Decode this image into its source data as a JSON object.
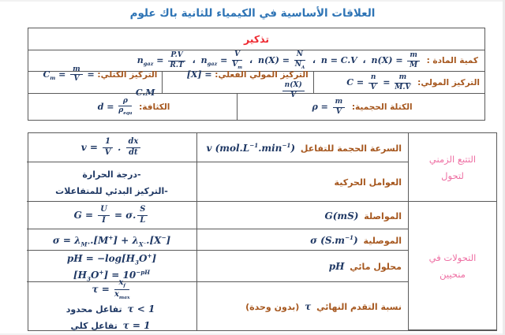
{
  "page": {
    "title": "العلاقات الأساسية في الكيمياء للثانية باك علوم"
  },
  "colors": {
    "blue": "#2E74B5",
    "red": "#EE2B33",
    "brown": "#A6571E",
    "navy": "#1F3864",
    "pink": "#EE6FA3",
    "border": "#5a5a5a"
  },
  "reminder_table": {
    "header": "تذكير",
    "amount_row": {
      "lines": [
        [
          {
            "label": "كمية المادة : "
          },
          {
            "math": [
              {
                "t": "n(X) = "
              },
              {
                "frac": {
                  "n": [
                    {
                      "t": "m"
                    }
                  ],
                  "d": [
                    {
                      "t": "M"
                    }
                  ]
                }
              }
            ]
          },
          {
            "blue": " ، "
          },
          {
            "math": [
              {
                "t": "n = C.V"
              }
            ]
          },
          {
            "blue": " ، "
          },
          {
            "math": [
              {
                "t": "n(X) = "
              },
              {
                "frac": {
                  "n": [
                    {
                      "t": "N"
                    }
                  ],
                  "d": [
                    {
                      "t": "N"
                    },
                    {
                      "sub": "A"
                    }
                  ]
                }
              }
            ]
          },
          {
            "blue": " ، "
          },
          {
            "math": [
              {
                "t": "n"
              },
              {
                "sub": "gaz"
              },
              {
                "t": " = "
              },
              {
                "frac": {
                  "n": [
                    {
                      "t": "V"
                    }
                  ],
                  "d": [
                    {
                      "t": "V"
                    },
                    {
                      "sub": "m"
                    }
                  ]
                }
              }
            ]
          },
          {
            "blue": " ، "
          },
          {
            "math": [
              {
                "t": "n"
              },
              {
                "sub": "gaz"
              },
              {
                "t": " = "
              },
              {
                "frac": {
                  "n": [
                    {
                      "t": "P.V"
                    }
                  ],
                  "d": [
                    {
                      "t": "R.T"
                    }
                  ]
                }
              }
            ]
          }
        ]
      ]
    },
    "concentration_row": {
      "molar": {
        "lines": [
          [
            {
              "label": "التركيز المولي: "
            },
            {
              "math": [
                {
                  "t": "C = "
                },
                {
                  "frac": {
                    "n": [
                      {
                        "t": "n"
                      }
                    ],
                    "d": [
                      {
                        "t": "V"
                      }
                    ]
                  }
                },
                {
                  "t": " = "
                },
                {
                  "frac": {
                    "n": [
                      {
                        "t": "m"
                      }
                    ],
                    "d": [
                      {
                        "t": "M.V"
                      }
                    ]
                  }
                }
              ]
            }
          ]
        ]
      },
      "effective": {
        "lines": [
          [
            {
              "label": "التركيز المولي الفعلي: "
            },
            {
              "math": [
                {
                  "t": "[X] = "
                },
                {
                  "frac": {
                    "n": [
                      {
                        "t": "n(X)"
                      }
                    ],
                    "d": [
                      {
                        "t": "V"
                      }
                    ]
                  }
                }
              ]
            }
          ]
        ]
      },
      "mass": {
        "lines": [
          [
            {
              "label": "التركيز الكتلي: "
            },
            {
              "math": [
                {
                  "t": "C"
                },
                {
                  "sub": "m"
                },
                {
                  "t": " = "
                },
                {
                  "frac": {
                    "n": [
                      {
                        "t": "m"
                      }
                    ],
                    "d": [
                      {
                        "t": "V"
                      }
                    ]
                  }
                },
                {
                  "t": " = C.M"
                }
              ]
            }
          ]
        ]
      }
    },
    "density_row": {
      "volumic_mass": {
        "lines": [
          [
            {
              "label": "الكتلة الحجمية: "
            },
            {
              "math": [
                {
                  "t": "ρ = "
                },
                {
                  "frac": {
                    "n": [
                      {
                        "t": "m"
                      }
                    ],
                    "d": [
                      {
                        "t": "V"
                      }
                    ]
                  }
                }
              ]
            }
          ]
        ]
      },
      "density": {
        "lines": [
          [
            {
              "label": "الكثافة: "
            },
            {
              "math": [
                {
                  "t": "d = "
                },
                {
                  "frac": {
                    "n": [
                      {
                        "t": "ρ"
                      }
                    ],
                    "d": [
                      {
                        "t": "ρ"
                      },
                      {
                        "sub": "equ"
                      }
                    ]
                  }
                }
              ]
            }
          ]
        ]
      }
    }
  },
  "main_table": {
    "rows": [
      {
        "desc": [
          [
            {
              "label": "السرعة الحجمة  للتفاعل "
            },
            {
              "math": [
                {
                  "t": "v (mol.L"
                },
                {
                  "sup": "−1"
                },
                {
                  "t": ".min"
                },
                {
                  "sup": "−1"
                },
                {
                  "t": ")"
                }
              ]
            }
          ]
        ],
        "formula": [
          [
            {
              "math": [
                {
                  "t": "v = "
                },
                {
                  "frac": {
                    "n": [
                      {
                        "t": "1"
                      }
                    ],
                    "d": [
                      {
                        "t": "V"
                      }
                    ]
                  }
                },
                {
                  "t": " . "
                },
                {
                  "frac": {
                    "n": [
                      {
                        "t": "dx"
                      }
                    ],
                    "d": [
                      {
                        "t": "dt"
                      }
                    ]
                  }
                }
              ]
            }
          ]
        ]
      },
      {
        "desc": [
          [
            {
              "label": "العوامل الحركية"
            }
          ]
        ],
        "formula": [
          [
            {
              "blue": "-درجة الحرارة"
            }
          ],
          [
            {
              "blue": "-التركيز البدئي للمتفاعلات"
            }
          ]
        ]
      },
      {
        "desc": [
          [
            {
              "label": "المواصلة "
            },
            {
              "math": [
                {
                  "t": "G(mS)"
                }
              ]
            }
          ]
        ],
        "formula": [
          [
            {
              "math": [
                {
                  "t": "G = "
                },
                {
                  "frac": {
                    "n": [
                      {
                        "t": "U"
                      }
                    ],
                    "d": [
                      {
                        "t": "I"
                      }
                    ]
                  }
                },
                {
                  "t": " = σ."
                },
                {
                  "frac": {
                    "n": [
                      {
                        "t": "S"
                      }
                    ],
                    "d": [
                      {
                        "t": "L"
                      }
                    ]
                  }
                }
              ]
            }
          ]
        ]
      },
      {
        "desc": [
          [
            {
              "label": "الموصلية "
            },
            {
              "math": [
                {
                  "t": "σ (S.m"
                },
                {
                  "sup": "−1"
                },
                {
                  "t": ")"
                }
              ]
            }
          ]
        ],
        "formula": [
          [
            {
              "math": [
                {
                  "t": "σ = λ"
                },
                {
                  "sub": "M⁺"
                },
                {
                  "t": ".[M"
                },
                {
                  "sup": "+"
                },
                {
                  "t": "] + λ"
                },
                {
                  "sub": "X⁻"
                },
                {
                  "t": ".[X"
                },
                {
                  "sup": "−"
                },
                {
                  "t": "]"
                }
              ]
            }
          ]
        ]
      },
      {
        "desc": [
          [
            {
              "label": "محلول مائي  "
            },
            {
              "math": [
                {
                  "t": "pH"
                }
              ]
            }
          ]
        ],
        "formula": [
          [
            {
              "math": [
                {
                  "t": "pH = −log[H"
                },
                {
                  "sub": "3"
                },
                {
                  "t": "O"
                },
                {
                  "sup": "+"
                },
                {
                  "t": "]"
                }
              ]
            }
          ],
          [
            {
              "math": [
                {
                  "t": "[H"
                },
                {
                  "sub": "3"
                },
                {
                  "t": "O"
                },
                {
                  "sup": "+"
                },
                {
                  "t": "] = 10"
                },
                {
                  "sup": "−pH"
                }
              ]
            }
          ]
        ]
      },
      {
        "desc": [
          [
            {
              "label": "نسبة التقدم النهائي "
            },
            {
              "math": [
                {
                  "t": "τ"
                }
              ]
            },
            {
              "label": "  (بدون وحدة)"
            }
          ]
        ],
        "formula": [
          [
            {
              "math": [
                {
                  "t": "τ = "
                },
                {
                  "frac": {
                    "n": [
                      {
                        "t": "x"
                      },
                      {
                        "sub": "f"
                      }
                    ],
                    "d": [
                      {
                        "t": "x"
                      },
                      {
                        "sub": "max"
                      }
                    ]
                  }
                }
              ]
            }
          ],
          [
            {
              "math": [
                {
                  "t": "τ < 1"
                }
              ]
            },
            {
              "blue": " تفاعل محدود"
            }
          ],
          [
            {
              "math": [
                {
                  "t": "τ = 1"
                }
              ]
            },
            {
              "blue": " تفاعل كلي"
            }
          ]
        ]
      }
    ],
    "categories": [
      {
        "lines": [
          [
            {
              "pink": "التتبع الزمني"
            }
          ],
          [
            {
              "pink": "لتحول"
            }
          ]
        ]
      },
      {
        "lines": [
          [
            {
              "pink": "التحولات في"
            }
          ],
          [
            {
              "pink": "منحيين"
            }
          ]
        ]
      }
    ]
  }
}
